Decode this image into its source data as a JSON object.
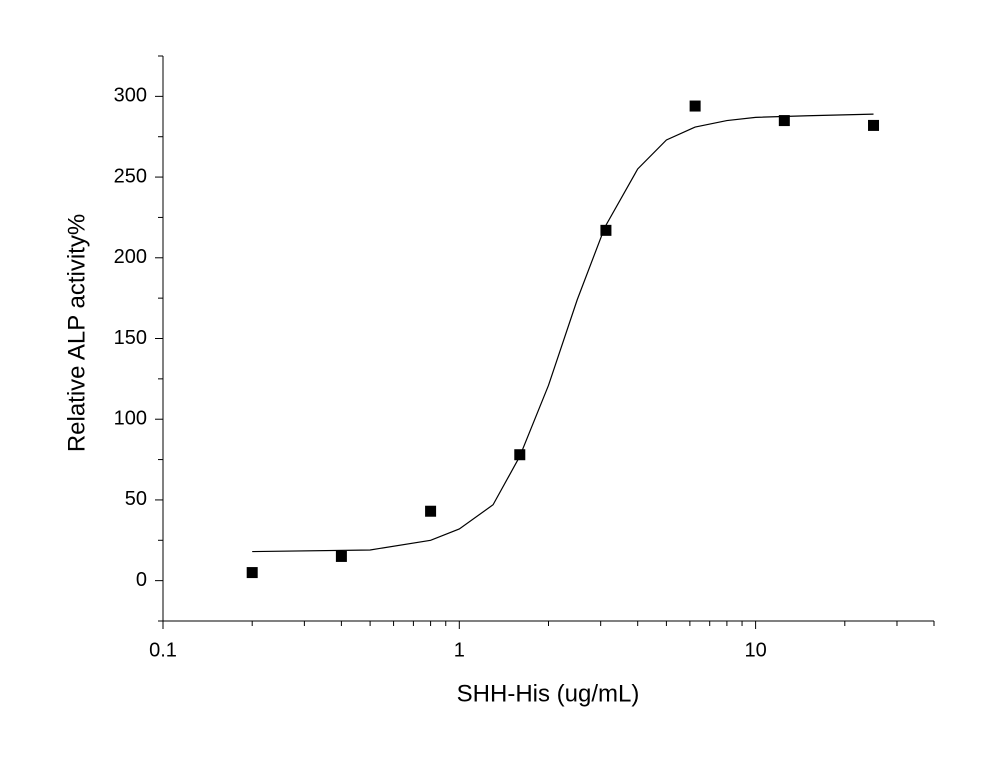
{
  "chart_data": {
    "type": "scatter",
    "x_label": "SHH-His (ug/mL)",
    "y_label": "Relative ALP activity%",
    "xscale": "log",
    "xlim": [
      0.1,
      40
    ],
    "xticks": [
      0.1,
      1,
      10
    ],
    "xminorticks": [
      0.2,
      0.3,
      0.4,
      0.5,
      0.6,
      0.7,
      0.8,
      0.9,
      2,
      3,
      4,
      5,
      6,
      7,
      8,
      9,
      20,
      30,
      40
    ],
    "ylim": [
      -25,
      325
    ],
    "yticks": [
      0,
      50,
      100,
      150,
      200,
      250,
      300
    ],
    "yminorticks": [
      -25,
      25,
      75,
      125,
      175,
      225,
      275,
      325
    ],
    "series": [
      {
        "color": "#000000",
        "marker": "square",
        "x": [
          0.2,
          0.4,
          0.8,
          1.6,
          3.125,
          6.25,
          12.5,
          25
        ],
        "values": [
          5,
          15,
          43,
          78,
          217,
          294,
          285,
          282
        ]
      },
      {
        "color": "#000000",
        "line": true,
        "x": [
          0.2,
          0.5,
          0.8,
          1,
          1.3,
          1.6,
          2,
          2.5,
          3.1,
          4,
          5,
          6.25,
          8,
          10,
          15,
          25
        ],
        "values": [
          18,
          19,
          25,
          32,
          47,
          77,
          121,
          174,
          219,
          255,
          273,
          281,
          285,
          287,
          288,
          289
        ]
      }
    ]
  }
}
